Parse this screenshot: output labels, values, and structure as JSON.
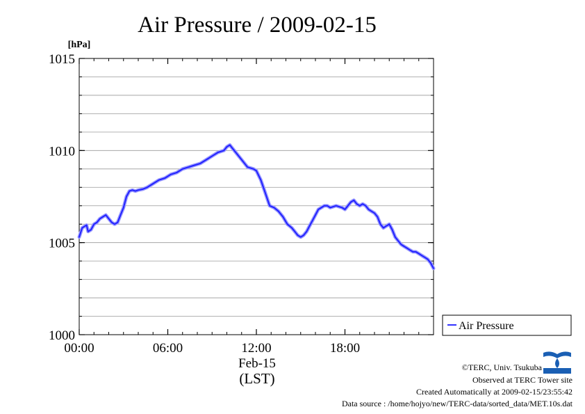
{
  "chart_data": {
    "type": "line",
    "title": "Air Pressure / 2009-02-15",
    "ylabel": "[hPa]",
    "xlabel": "(LST)",
    "date_label": "Feb-15",
    "xlim": [
      0,
      24
    ],
    "ylim": [
      1000,
      1015
    ],
    "yticks": [
      "1000",
      "1005",
      "1010",
      "1015"
    ],
    "xticks": [
      {
        "hour": 0,
        "label": "00:00"
      },
      {
        "hour": 6,
        "label": "06:00"
      },
      {
        "hour": 12,
        "label": "12:00"
      },
      {
        "hour": 18,
        "label": "18:00"
      }
    ],
    "grid": true,
    "legend": "bottom-right",
    "series": [
      {
        "name": "Air Pressure",
        "color": "#3333ff",
        "x": [
          0.0,
          0.2,
          0.4,
          0.5,
          0.6,
          0.8,
          1.0,
          1.2,
          1.4,
          1.6,
          1.8,
          2.0,
          2.2,
          2.4,
          2.6,
          2.8,
          3.0,
          3.2,
          3.4,
          3.6,
          3.8,
          4.0,
          4.3,
          4.6,
          5.0,
          5.4,
          5.8,
          6.2,
          6.6,
          7.0,
          7.4,
          7.8,
          8.2,
          8.6,
          9.0,
          9.4,
          9.8,
          10.0,
          10.2,
          10.4,
          10.6,
          11.0,
          11.4,
          11.8,
          12.0,
          12.3,
          12.6,
          12.9,
          13.2,
          13.5,
          13.8,
          14.1,
          14.4,
          14.6,
          14.8,
          15.0,
          15.2,
          15.4,
          15.6,
          15.8,
          16.0,
          16.2,
          16.4,
          16.6,
          16.8,
          17.0,
          17.4,
          17.8,
          18.0,
          18.4,
          18.6,
          18.8,
          19.0,
          19.2,
          19.4,
          19.6,
          19.8,
          20.0,
          20.2,
          20.4,
          20.6,
          20.8,
          21.0,
          21.2,
          21.4,
          21.6,
          21.8,
          22.0,
          22.2,
          22.4,
          22.6,
          22.8,
          23.0,
          23.2,
          23.4,
          23.6,
          23.8,
          24.0
        ],
        "values": [
          1005.3,
          1005.8,
          1005.9,
          1005.95,
          1005.6,
          1005.7,
          1006.0,
          1006.1,
          1006.3,
          1006.4,
          1006.5,
          1006.3,
          1006.1,
          1006.0,
          1006.1,
          1006.5,
          1006.9,
          1007.5,
          1007.8,
          1007.85,
          1007.8,
          1007.85,
          1007.9,
          1008.0,
          1008.2,
          1008.4,
          1008.5,
          1008.7,
          1008.8,
          1009.0,
          1009.1,
          1009.2,
          1009.3,
          1009.5,
          1009.7,
          1009.9,
          1010.0,
          1010.2,
          1010.3,
          1010.1,
          1009.9,
          1009.5,
          1009.1,
          1009.0,
          1008.9,
          1008.4,
          1007.7,
          1007.0,
          1006.9,
          1006.7,
          1006.4,
          1006.0,
          1005.8,
          1005.6,
          1005.4,
          1005.3,
          1005.4,
          1005.6,
          1005.9,
          1006.2,
          1006.5,
          1006.8,
          1006.9,
          1007.0,
          1007.0,
          1006.9,
          1007.0,
          1006.9,
          1006.8,
          1007.2,
          1007.3,
          1007.1,
          1007.0,
          1007.1,
          1007.0,
          1006.8,
          1006.7,
          1006.6,
          1006.4,
          1006.0,
          1005.8,
          1005.9,
          1006.0,
          1005.7,
          1005.3,
          1005.1,
          1004.9,
          1004.8,
          1004.7,
          1004.6,
          1004.5,
          1004.5,
          1004.4,
          1004.3,
          1004.2,
          1004.1,
          1003.9,
          1003.6
        ]
      }
    ]
  },
  "credits": {
    "copyright": "©TERC, Univ. Tsukuba",
    "site": "Observed at TERC Tower site",
    "created": "Created Automatically at 2009-02-15/23:55:42",
    "source": "Data source : /home/hojyo/new/TERC-data/sorted_data/MET.10s.dat"
  }
}
